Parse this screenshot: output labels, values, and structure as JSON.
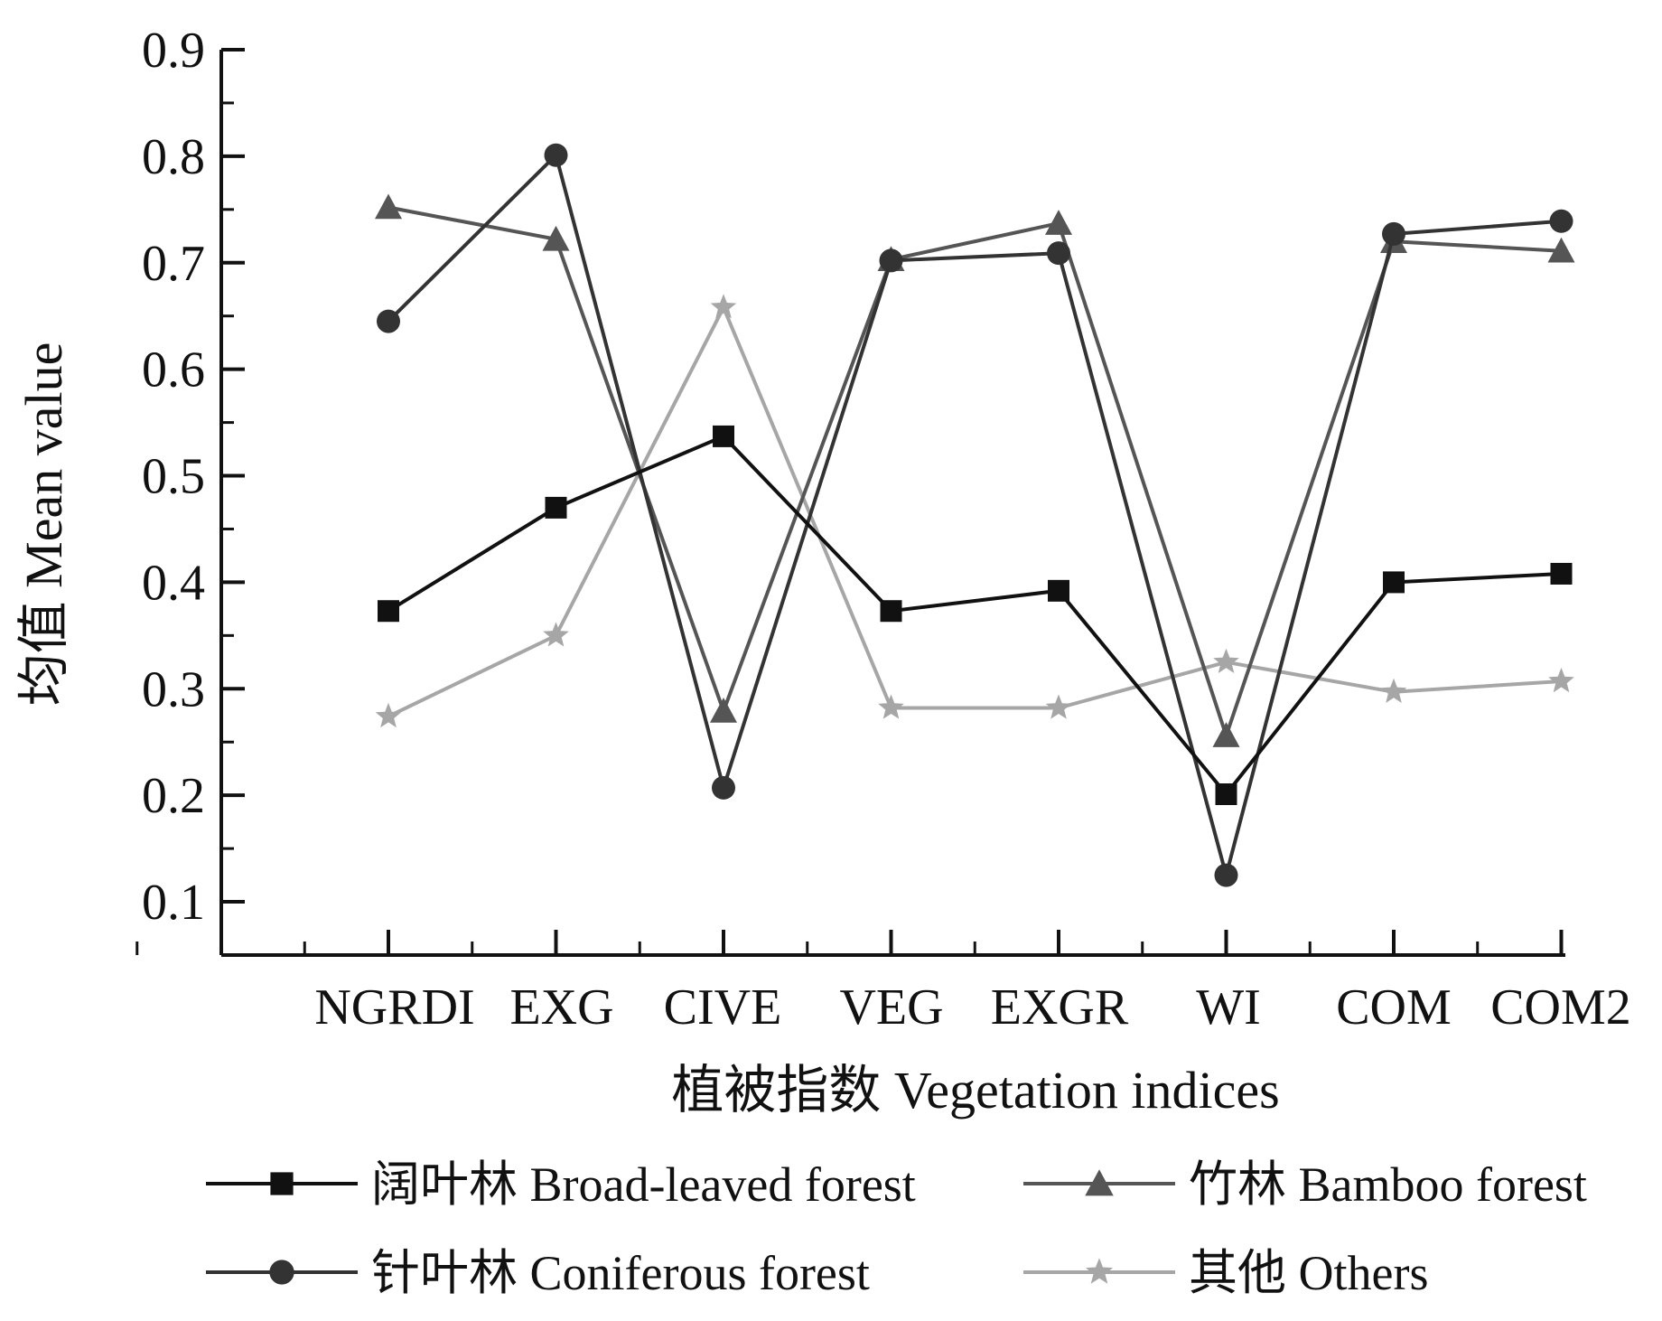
{
  "chart_data": {
    "type": "line",
    "categories": [
      "NGRDI",
      "EXG",
      "CIVE",
      "VEG",
      "EXGR",
      "WI",
      "COM",
      "COM2"
    ],
    "ylabel": "均值  Mean value",
    "xlabel": "植被指数  Vegetation indices",
    "ylim": [
      0.05,
      0.9
    ],
    "yticks": [
      "0.1",
      "0.2",
      "0.3",
      "0.4",
      "0.5",
      "0.6",
      "0.7",
      "0.8",
      "0.9"
    ],
    "grid": false,
    "legend_position": "bottom",
    "series": [
      {
        "name": "阔叶林  Broad-leaved forest",
        "marker": "square",
        "color": "#111111",
        "values": [
          0.373,
          0.47,
          0.537,
          0.373,
          0.392,
          0.201,
          0.4,
          0.408
        ]
      },
      {
        "name": "竹林  Bamboo forest",
        "marker": "triangle",
        "color": "#555555",
        "values": [
          0.752,
          0.722,
          0.279,
          0.703,
          0.737,
          0.256,
          0.72,
          0.711
        ]
      },
      {
        "name": "针叶林  Coniferous forest",
        "marker": "circle",
        "color": "#333333",
        "values": [
          0.645,
          0.801,
          0.207,
          0.702,
          0.709,
          0.125,
          0.727,
          0.739
        ]
      },
      {
        "name": "其他  Others",
        "marker": "star",
        "color": "#a6a6a6",
        "values": [
          0.274,
          0.35,
          0.658,
          0.282,
          0.282,
          0.325,
          0.297,
          0.307
        ]
      }
    ]
  }
}
